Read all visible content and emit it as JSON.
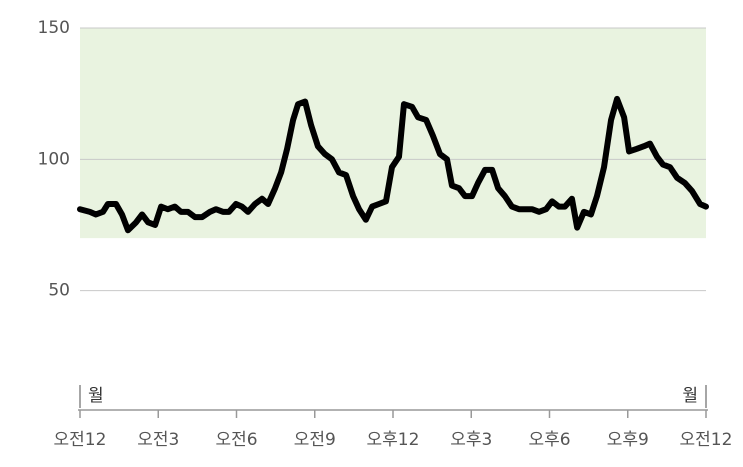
{
  "chart_data": {
    "type": "line",
    "x": [
      0,
      0.38,
      0.61,
      0.88,
      1.07,
      1.38,
      1.61,
      1.84,
      2.15,
      2.38,
      2.61,
      2.88,
      3.11,
      3.37,
      3.64,
      3.87,
      4.14,
      4.41,
      4.68,
      4.98,
      5.21,
      5.48,
      5.71,
      5.98,
      6.21,
      6.44,
      6.71,
      6.98,
      7.21,
      7.48,
      7.71,
      7.94,
      8.17,
      8.36,
      8.63,
      8.86,
      9.12,
      9.39,
      9.66,
      9.93,
      10.2,
      10.47,
      10.7,
      10.96,
      11.2,
      11.46,
      11.73,
      11.96,
      12.23,
      12.42,
      12.73,
      12.96,
      13.27,
      13.53,
      13.8,
      14.07,
      14.26,
      14.53,
      14.76,
      15.03,
      15.26,
      15.53,
      15.8,
      16.03,
      16.29,
      16.56,
      16.83,
      17.06,
      17.33,
      17.6,
      17.87,
      18.1,
      18.36,
      18.59,
      18.86,
      19.06,
      19.32,
      19.59,
      19.82,
      20.09,
      20.36,
      20.59,
      20.86,
      21.05,
      21.35,
      21.62,
      21.85,
      22.12,
      22.35,
      22.62,
      22.89,
      23.19,
      23.46,
      23.77,
      24
    ],
    "series": [
      {
        "color": "#000000",
        "values": [
          81,
          80,
          79,
          80,
          83,
          83,
          79,
          73,
          76,
          79,
          76,
          75,
          82,
          81,
          82,
          80,
          80,
          78,
          78,
          80,
          81,
          80,
          80,
          83,
          82,
          80,
          83,
          85,
          83,
          89,
          95,
          104,
          115,
          121,
          122,
          113,
          105,
          102,
          100,
          95,
          94,
          86,
          81,
          77,
          82,
          83,
          84,
          97,
          101,
          121,
          120,
          116,
          115,
          109,
          102,
          100,
          90,
          89,
          86,
          86,
          91,
          96,
          96,
          89,
          86,
          82,
          81,
          81,
          81,
          80,
          81,
          84,
          82,
          82,
          85,
          74,
          80,
          79,
          86,
          97,
          115,
          123,
          116,
          103,
          104,
          105,
          106,
          101,
          98,
          97,
          93,
          91,
          88,
          83,
          82
        ]
      }
    ],
    "xlim": [
      0,
      24
    ],
    "xticks": [
      {
        "value": 0,
        "label": "오전12"
      },
      {
        "value": 3,
        "label": "오전3"
      },
      {
        "value": 6,
        "label": "오전6"
      },
      {
        "value": 9,
        "label": "오전9"
      },
      {
        "value": 12,
        "label": "오후12"
      },
      {
        "value": 15,
        "label": "오후3"
      },
      {
        "value": 18,
        "label": "오후6"
      },
      {
        "value": 21,
        "label": "오후9"
      },
      {
        "value": 24,
        "label": "오전12"
      }
    ],
    "day_labels": [
      {
        "value": 0,
        "label": "월"
      },
      {
        "value": 24,
        "label": "월"
      }
    ],
    "ylim": [
      0,
      150
    ],
    "yticks": [
      50,
      100,
      150
    ],
    "band": [
      70,
      150
    ],
    "band_color": "#e9f3e0",
    "grid": true
  }
}
